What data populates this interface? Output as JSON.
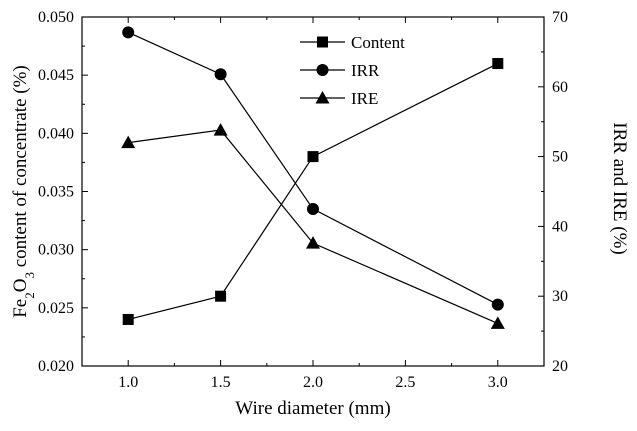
{
  "chart_data": {
    "type": "line",
    "x": [
      1.0,
      1.5,
      2.0,
      3.0
    ],
    "xlabel": "Wire diameter (mm)",
    "xlim": [
      0.75,
      3.25
    ],
    "xticks": [
      "1.0",
      "1.5",
      "2.0",
      "2.5",
      "3.0"
    ],
    "ylabel": {
      "prefix": "Fe",
      "sub1": "2",
      "mid": "O",
      "sub2": "3",
      "suffix": " content of concentrate (%)"
    },
    "ylim": [
      0.02,
      0.05
    ],
    "yticks": [
      "0.020",
      "0.025",
      "0.030",
      "0.035",
      "0.040",
      "0.045",
      "0.050"
    ],
    "y2label": "IRR and IRE (%)",
    "y2lim": [
      20,
      70
    ],
    "y2ticks": [
      "20",
      "30",
      "40",
      "50",
      "60",
      "70"
    ],
    "grid": false,
    "legend_position": "top-center",
    "series": [
      {
        "name": "Content",
        "axis": "left",
        "marker": "square",
        "values": [
          0.024,
          0.026,
          0.038,
          0.046
        ]
      },
      {
        "name": "IRR",
        "axis": "right",
        "marker": "circle",
        "values": [
          67.8,
          61.8,
          42.5,
          28.8
        ]
      },
      {
        "name": "IRE",
        "axis": "right",
        "marker": "triangle",
        "values": [
          52.0,
          53.8,
          37.6,
          26.1
        ]
      }
    ]
  }
}
